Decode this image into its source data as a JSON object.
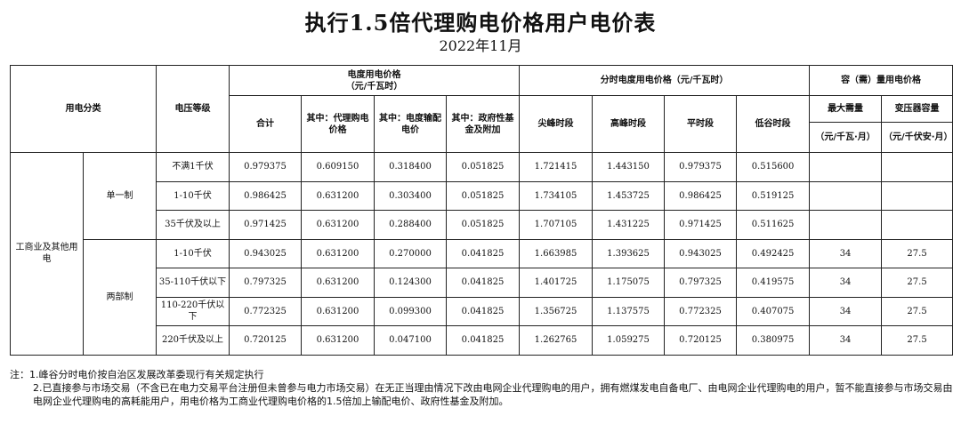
{
  "title": "执行1.5倍代理购电价格用户电价表",
  "subtitle": "2022年11月",
  "headers": {
    "category": "用电分类",
    "voltage": "电压等级",
    "kwh_group_line1": "电度用电价格",
    "kwh_group_line2": "（元/千瓦时）",
    "total": "合计",
    "agent": "其中：代理购电价格",
    "transmission": "其中：电度输配电价",
    "fund": "其中：政府性基金及附加",
    "tou_group": "分时电度用电价格（元/千瓦时）",
    "peak": "尖峰时段",
    "high": "高峰时段",
    "flat": "平时段",
    "valley": "低谷时段",
    "capacity_group": "容（需）量用电价格",
    "max_demand": "最大需量",
    "max_demand_unit": "（元/千瓦·月）",
    "transformer": "变压器容量",
    "transformer_unit": "（元/千伏安·月）"
  },
  "category_label": "工商业及其他用电",
  "groups": [
    {
      "label": "单一制",
      "rows": [
        {
          "voltage": "不满1千伏",
          "total": "0.979375",
          "agent": "0.609150",
          "transmission": "0.318400",
          "fund": "0.051825",
          "peak": "1.721415",
          "high": "1.443150",
          "flat": "0.979375",
          "valley": "0.515600",
          "demand": "",
          "capacity": ""
        },
        {
          "voltage": "1-10千伏",
          "total": "0.986425",
          "agent": "0.631200",
          "transmission": "0.303400",
          "fund": "0.051825",
          "peak": "1.734105",
          "high": "1.453725",
          "flat": "0.986425",
          "valley": "0.519125",
          "demand": "",
          "capacity": ""
        },
        {
          "voltage": "35千伏及以上",
          "total": "0.971425",
          "agent": "0.631200",
          "transmission": "0.288400",
          "fund": "0.051825",
          "peak": "1.707105",
          "high": "1.431225",
          "flat": "0.971425",
          "valley": "0.511625",
          "demand": "",
          "capacity": ""
        }
      ]
    },
    {
      "label": "两部制",
      "rows": [
        {
          "voltage": "1-10千伏",
          "total": "0.943025",
          "agent": "0.631200",
          "transmission": "0.270000",
          "fund": "0.041825",
          "peak": "1.663985",
          "high": "1.393625",
          "flat": "0.943025",
          "valley": "0.492425",
          "demand": "34",
          "capacity": "27.5"
        },
        {
          "voltage": "35-110千伏以下",
          "total": "0.797325",
          "agent": "0.631200",
          "transmission": "0.124300",
          "fund": "0.041825",
          "peak": "1.401725",
          "high": "1.175075",
          "flat": "0.797325",
          "valley": "0.419575",
          "demand": "34",
          "capacity": "27.5"
        },
        {
          "voltage": "110-220千伏以下",
          "total": "0.772325",
          "agent": "0.631200",
          "transmission": "0.099300",
          "fund": "0.041825",
          "peak": "1.356725",
          "high": "1.137575",
          "flat": "0.772325",
          "valley": "0.407075",
          "demand": "34",
          "capacity": "27.5"
        },
        {
          "voltage": "220千伏及以上",
          "total": "0.720125",
          "agent": "0.631200",
          "transmission": "0.047100",
          "fund": "0.041825",
          "peak": "1.262765",
          "high": "1.059275",
          "flat": "0.720125",
          "valley": "0.380975",
          "demand": "34",
          "capacity": "27.5"
        }
      ]
    }
  ],
  "notes": [
    "注：1.峰谷分时电价按自治区发展改革委现行有关规定执行",
    "2.已直接参与市场交易（不含已在电力交易平台注册但未曾参与电力市场交易）在无正当理由情况下改由电网企业代理购电的用户，拥有燃煤发电自备电厂、由电网企业代理购电的用户，暂不能直接参与市场交易由电网企业代理购电的高耗能用户，用电价格为工商业代理购电价格的1.5倍加上输配电价、政府性基金及附加。"
  ]
}
